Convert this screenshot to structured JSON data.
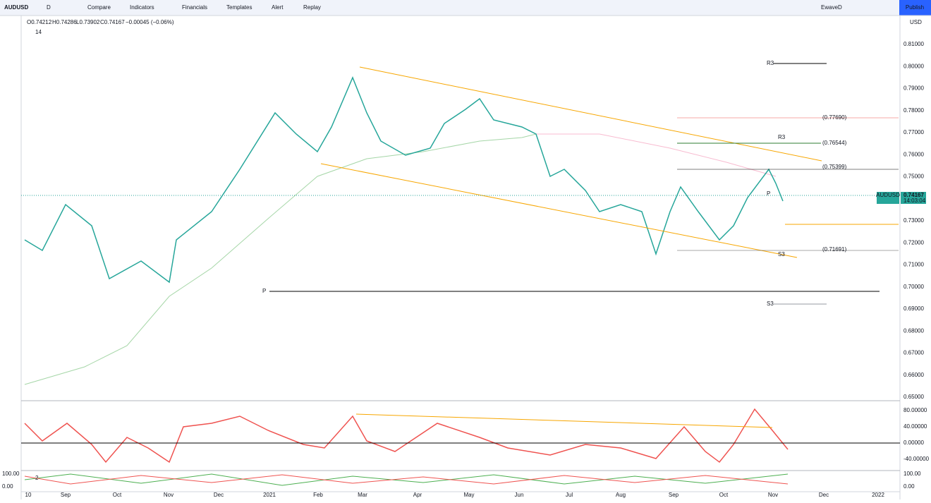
{
  "toolbar": {
    "symbol": "AUDUSD",
    "interval": "D",
    "buttons": [
      "Compare",
      "Indicators",
      "Financials",
      "Templates",
      "Alert",
      "Replay"
    ],
    "layout": "EwaveD",
    "publish": "Publish"
  },
  "legend": {
    "ohlc": [
      "O0.74212",
      "H0.74286",
      "L0.73902",
      "C0.74167",
      "−0.00045 (−0.06%)"
    ],
    "indicator": "14"
  },
  "price_axis": {
    "currency": "USD",
    "labels": [
      "0.81000",
      "0.80000",
      "0.79000",
      "0.78000",
      "0.77000",
      "0.76000",
      "0.75000",
      "0.74000",
      "0.73000",
      "0.72000",
      "0.71000",
      "0.70000",
      "0.69000",
      "0.68000",
      "0.67000",
      "0.66000",
      "0.65000"
    ]
  },
  "price_tag": {
    "symbol": "AUDUSD",
    "price": "0.74167",
    "countdown": "14:03:04"
  },
  "levels": [
    {
      "label": "R3"
    },
    {
      "label": "(0.77690)"
    },
    {
      "label": "R3"
    },
    {
      "label": "(0.76544)"
    },
    {
      "label": "(0.75399)"
    },
    {
      "label": "P"
    },
    {
      "label": "(0.71691)"
    },
    {
      "label": "S3"
    },
    {
      "label": "P"
    },
    {
      "label": "S3"
    }
  ],
  "oscillator": {
    "legend": "2",
    "labels": [
      "80.00000",
      "40.00000",
      "0.00000",
      "-40.00000"
    ]
  },
  "lower_pane": {
    "labels": [
      "100.00",
      "0.00"
    ]
  },
  "time_axis": {
    "labels": [
      "10",
      "Sep",
      "Oct",
      "Nov",
      "Dec",
      "2021",
      "Feb",
      "Mar",
      "Apr",
      "May",
      "Jun",
      "Jul",
      "Aug",
      "Sep",
      "Oct",
      "Nov",
      "Dec",
      "2022"
    ]
  }
}
